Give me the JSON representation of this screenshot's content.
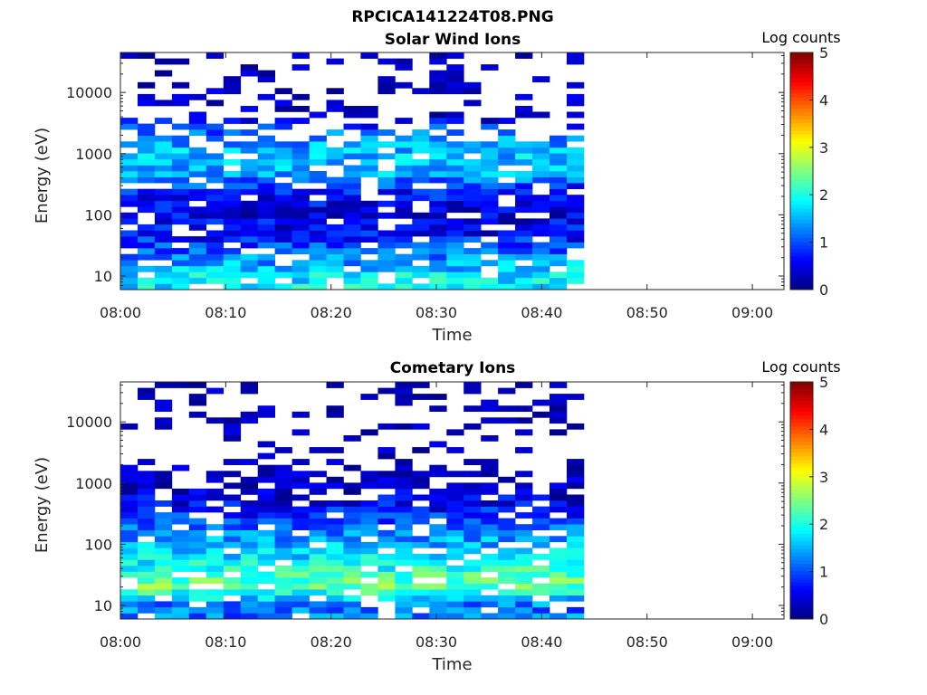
{
  "figure": {
    "title": "RPCICA141224T08.PNG"
  },
  "chart_data": [
    {
      "type": "heatmap",
      "title": "Solar Wind Ions",
      "xlabel": "Time",
      "ylabel": "Energy (eV)",
      "x_ticks": [
        "08:00",
        "08:10",
        "08:20",
        "08:30",
        "08:40",
        "08:50",
        "09:00"
      ],
      "x_range": [
        "08:00",
        "09:03"
      ],
      "y_scale": "log",
      "y_ticks": [
        "10",
        "100",
        "1000",
        "10000"
      ],
      "y_range": [
        6,
        45000
      ],
      "colorbar": {
        "label": "Log counts",
        "ticks": [
          "0",
          "1",
          "2",
          "3",
          "4",
          "5"
        ],
        "range": [
          0,
          5
        ],
        "colormap": "jet"
      },
      "data_extent": {
        "x_start": "08:00",
        "x_end": "08:44"
      },
      "representative_profile": [
        {
          "energy_eV": 10,
          "log_counts": 1.8
        },
        {
          "energy_eV": 20,
          "log_counts": 1.3
        },
        {
          "energy_eV": 50,
          "log_counts": 0.6
        },
        {
          "energy_eV": 100,
          "log_counts": 0.5
        },
        {
          "energy_eV": 250,
          "log_counts": 0.7
        },
        {
          "energy_eV": 500,
          "log_counts": 1.5
        },
        {
          "energy_eV": 1000,
          "log_counts": 1.6
        },
        {
          "energy_eV": 2000,
          "log_counts": 1.2
        },
        {
          "energy_eV": 5000,
          "log_counts": 0.2
        },
        {
          "energy_eV": 15000,
          "log_counts": 0.1
        }
      ]
    },
    {
      "type": "heatmap",
      "title": "Cometary Ions",
      "xlabel": "Time",
      "ylabel": "Energy (eV)",
      "x_ticks": [
        "08:00",
        "08:10",
        "08:20",
        "08:30",
        "08:40",
        "08:50",
        "09:00"
      ],
      "x_range": [
        "08:00",
        "09:03"
      ],
      "y_scale": "log",
      "y_ticks": [
        "10",
        "100",
        "1000",
        "10000"
      ],
      "y_range": [
        6,
        45000
      ],
      "colorbar": {
        "label": "Log counts",
        "ticks": [
          "0",
          "1",
          "2",
          "3",
          "4",
          "5"
        ],
        "range": [
          0,
          5
        ],
        "colormap": "jet"
      },
      "data_extent": {
        "x_start": "08:00",
        "x_end": "08:44"
      },
      "representative_profile": [
        {
          "energy_eV": 10,
          "log_counts": 1.2
        },
        {
          "energy_eV": 20,
          "log_counts": 2.4
        },
        {
          "energy_eV": 30,
          "log_counts": 2.2
        },
        {
          "energy_eV": 50,
          "log_counts": 1.9
        },
        {
          "energy_eV": 80,
          "log_counts": 1.6
        },
        {
          "energy_eV": 150,
          "log_counts": 1.3
        },
        {
          "energy_eV": 300,
          "log_counts": 0.8
        },
        {
          "energy_eV": 1000,
          "log_counts": 0.2
        },
        {
          "energy_eV": 2000,
          "log_counts": 0.1
        }
      ]
    }
  ]
}
